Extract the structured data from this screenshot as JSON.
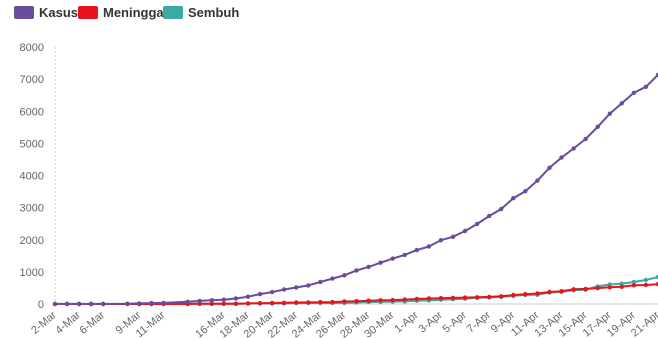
{
  "colors": {
    "kasus": "#6a4c9c",
    "meninggal": "#e8141b",
    "sembuh": "#3ba9a5",
    "axis": "#cccccc",
    "text": "#666666"
  },
  "chart_data": {
    "type": "line",
    "title": "",
    "xlabel": "",
    "ylabel": "",
    "ylim": [
      0,
      8000
    ],
    "yticks": [
      0,
      1000,
      2000,
      3000,
      4000,
      5000,
      6000,
      7000,
      8000
    ],
    "xtick_labels": [
      "2-Mar",
      "4-Mar",
      "6-Mar",
      "9-Mar",
      "11-Mar",
      "16-Mar",
      "18-Mar",
      "20-Mar",
      "22-Mar",
      "24-Mar",
      "26-Mar",
      "28-Mar",
      "30-Mar",
      "1-Apr",
      "3-Apr",
      "5-Apr",
      "7-Apr",
      "9-Apr",
      "11-Apr",
      "13-Apr",
      "15-Apr",
      "17-Apr",
      "19-Apr",
      "21-Apr"
    ],
    "grid": false,
    "legend": "top-left",
    "x": [
      "2-Mar",
      "3-Mar",
      "4-Mar",
      "5-Mar",
      "6-Mar",
      "8-Mar",
      "9-Mar",
      "10-Mar",
      "11-Mar",
      "13-Mar",
      "14-Mar",
      "15-Mar",
      "16-Mar",
      "17-Mar",
      "18-Mar",
      "19-Mar",
      "20-Mar",
      "21-Mar",
      "22-Mar",
      "23-Mar",
      "24-Mar",
      "25-Mar",
      "26-Mar",
      "27-Mar",
      "28-Mar",
      "29-Mar",
      "30-Mar",
      "31-Mar",
      "1-Apr",
      "2-Apr",
      "3-Apr",
      "4-Apr",
      "5-Apr",
      "6-Apr",
      "7-Apr",
      "8-Apr",
      "9-Apr",
      "10-Apr",
      "11-Apr",
      "12-Apr",
      "13-Apr",
      "14-Apr",
      "15-Apr",
      "16-Apr",
      "17-Apr",
      "18-Apr",
      "19-Apr",
      "20-Apr",
      "21-Apr"
    ],
    "series": [
      {
        "name": "Kasus",
        "values": [
          2,
          2,
          2,
          2,
          4,
          6,
          19,
          27,
          34,
          69,
          96,
          117,
          134,
          172,
          227,
          309,
          369,
          450,
          514,
          579,
          686,
          790,
          893,
          1046,
          1155,
          1285,
          1414,
          1528,
          1677,
          1790,
          1986,
          2092,
          2273,
          2491,
          2738,
          2956,
          3293,
          3512,
          3842,
          4241,
          4557,
          4839,
          5136,
          5516,
          5923,
          6248,
          6575,
          6760,
          7135
        ]
      },
      {
        "name": "Meninggal",
        "values": [
          0,
          0,
          0,
          0,
          0,
          0,
          0,
          0,
          1,
          4,
          5,
          5,
          5,
          5,
          19,
          25,
          32,
          38,
          48,
          49,
          55,
          58,
          78,
          87,
          102,
          114,
          122,
          136,
          157,
          170,
          181,
          191,
          198,
          209,
          221,
          240,
          280,
          306,
          327,
          373,
          399,
          459,
          469,
          496,
          520,
          535,
          582,
          590,
          616
        ]
      },
      {
        "name": "Sembuh",
        "values": [
          0,
          0,
          0,
          0,
          0,
          0,
          0,
          0,
          0,
          2,
          8,
          8,
          8,
          8,
          11,
          15,
          16,
          20,
          29,
          30,
          30,
          31,
          35,
          46,
          59,
          64,
          75,
          81,
          103,
          112,
          134,
          150,
          164,
          192,
          202,
          222,
          252,
          282,
          286,
          359,
          380,
          426,
          446,
          548,
          607,
          631,
          686,
          747,
          842
        ]
      }
    ]
  }
}
